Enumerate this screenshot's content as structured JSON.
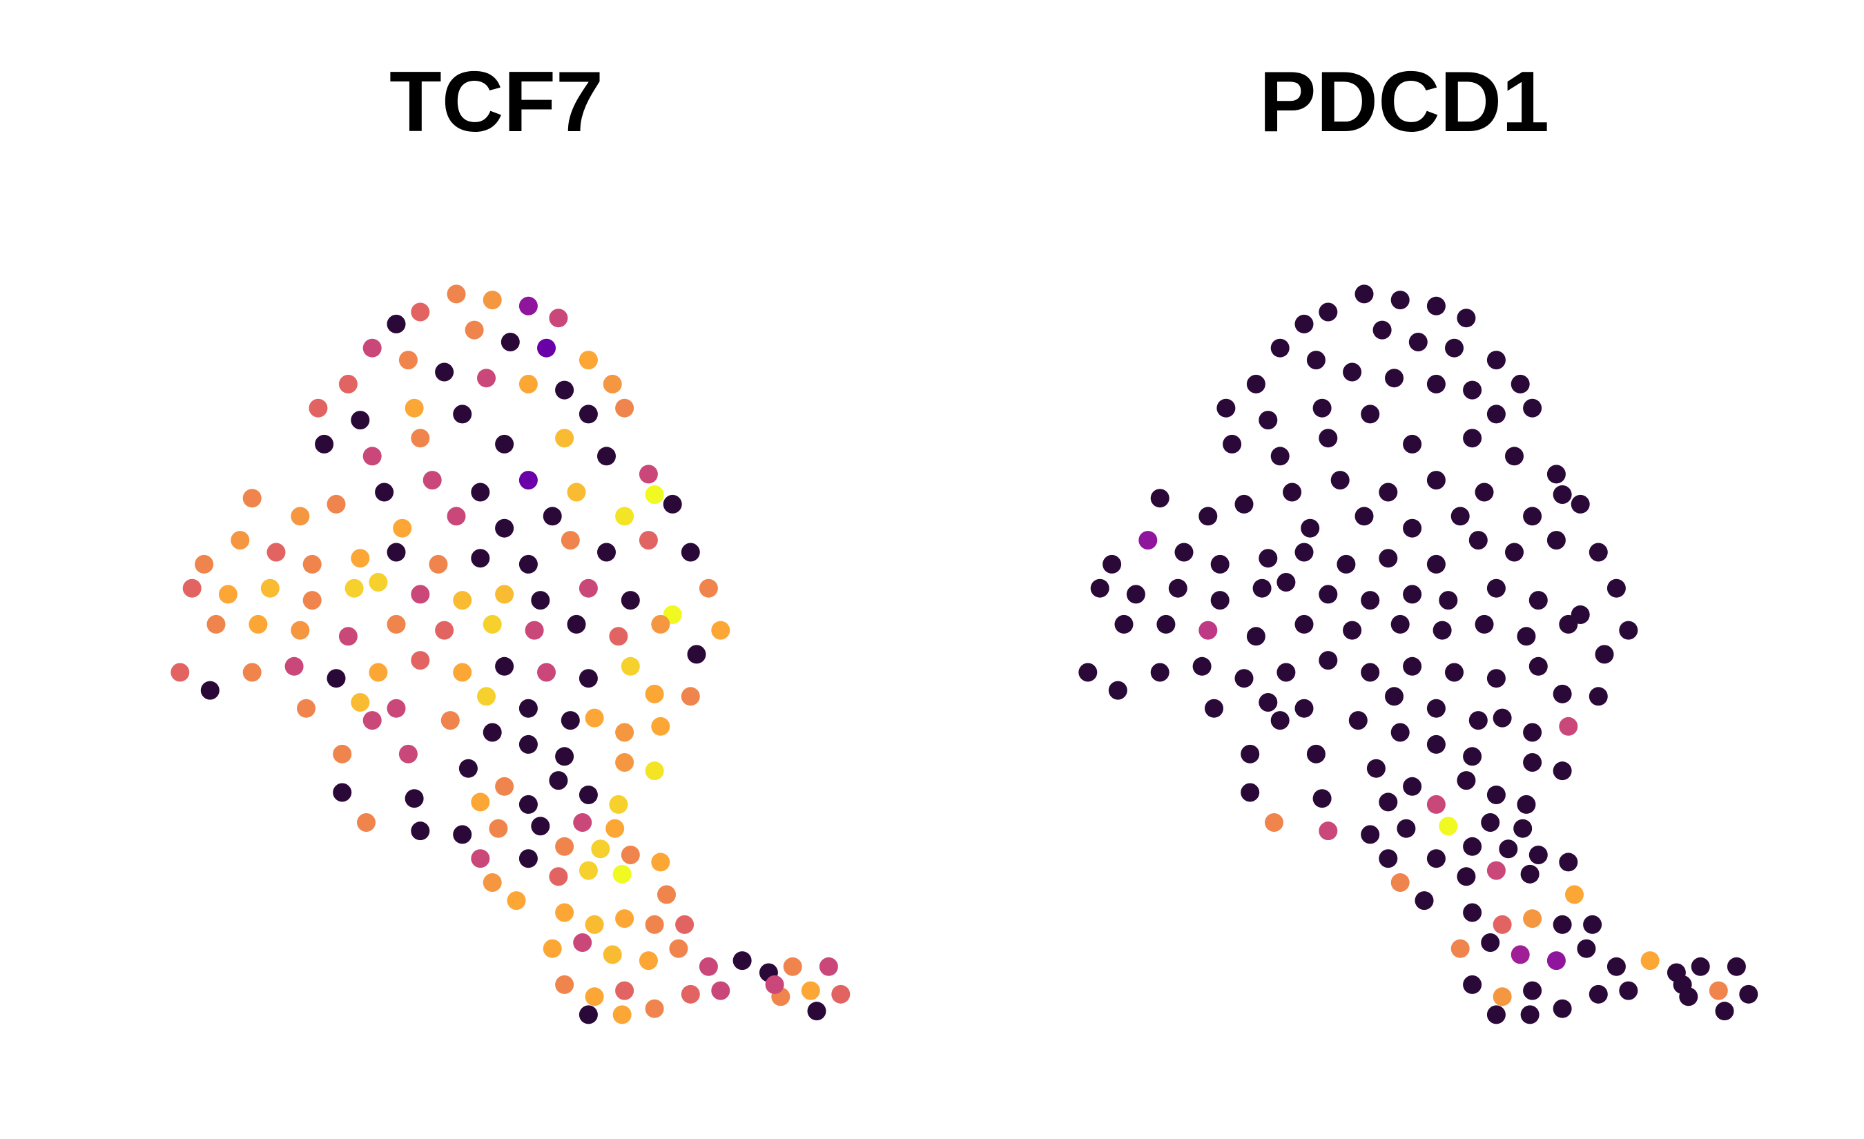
{
  "chart_data": [
    {
      "type": "scatter",
      "title": "TCF7",
      "xlim": [
        0,
        600
      ],
      "ylim": [
        0,
        650
      ],
      "clim": [
        0,
        1
      ],
      "colormap": [
        "#2a0838",
        "#6a00a8",
        "#b12a90",
        "#e16462",
        "#fca636",
        "#f0f921"
      ],
      "x": [
        250,
        280,
        310,
        335,
        220,
        200,
        265,
        295,
        325,
        360,
        380,
        180,
        160,
        210,
        240,
        275,
        310,
        340,
        135,
        170,
        215,
        255,
        360,
        390,
        140,
        180,
        220,
        290,
        340,
        375,
        410,
        430,
        310,
        270,
        230,
        190,
        150,
        120,
        80,
        350,
        390,
        415,
        330,
        290,
        250,
        205,
        40,
        70,
        100,
        130,
        170,
        200,
        235,
        270,
        310,
        345,
        375,
        410,
        445,
        30,
        60,
        95,
        130,
        165,
        185,
        220,
        255,
        290,
        320,
        360,
        395,
        430,
        460,
        470,
        50,
        85,
        120,
        160,
        200,
        240,
        280,
        315,
        350,
        385,
        420,
        20,
        45,
        80,
        115,
        150,
        185,
        220,
        255,
        290,
        325,
        360,
        395,
        450,
        125,
        170,
        200,
        245,
        275,
        310,
        345,
        415,
        445,
        180,
        155,
        210,
        280,
        310,
        340,
        365,
        390,
        420,
        260,
        290,
        335,
        390,
        415,
        155,
        215,
        270,
        310,
        360,
        385,
        175,
        220,
        255,
        285,
        320,
        355,
        382,
        270,
        310,
        340,
        370,
        395,
        420,
        280,
        300,
        335,
        360,
        388,
        425,
        340,
        365,
        390,
        415,
        440,
        330,
        355,
        380,
        410,
        435,
        460,
        340,
        365,
        390,
        415,
        360,
        388,
        445,
        470,
        488,
        510,
        530,
        560,
        520,
        545,
        570,
        550,
        515
      ],
      "y": [
        615,
        610,
        605,
        595,
        600,
        590,
        585,
        575,
        570,
        560,
        540,
        570,
        540,
        560,
        550,
        545,
        540,
        535,
        520,
        510,
        520,
        515,
        515,
        520,
        490,
        480,
        495,
        490,
        495,
        480,
        465,
        440,
        460,
        450,
        460,
        450,
        440,
        430,
        445,
        450,
        430,
        448,
        430,
        420,
        430,
        420,
        390,
        410,
        400,
        390,
        395,
        400,
        390,
        395,
        390,
        410,
        400,
        410,
        400,
        370,
        365,
        370,
        360,
        370,
        375,
        365,
        360,
        365,
        360,
        370,
        360,
        348,
        370,
        335,
        340,
        340,
        335,
        330,
        340,
        335,
        340,
        335,
        340,
        330,
        340,
        300,
        285,
        300,
        305,
        295,
        300,
        310,
        300,
        305,
        300,
        295,
        305,
        315,
        270,
        275,
        270,
        260,
        280,
        270,
        260,
        282,
        280,
        260,
        232,
        232,
        250,
        240,
        230,
        262,
        250,
        255,
        220,
        205,
        210,
        225,
        218,
        200,
        195,
        192,
        190,
        198,
        190,
        175,
        168,
        165,
        170,
        172,
        175,
        170,
        145,
        145,
        155,
        153,
        148,
        142,
        125,
        110,
        130,
        135,
        132,
        115,
        100,
        90,
        95,
        90,
        90,
        70,
        75,
        65,
        60,
        70,
        55,
        40,
        30,
        35,
        20,
        15,
        15,
        32,
        35,
        60,
        50,
        55,
        55,
        30,
        35,
        32,
        18,
        40
      ],
      "values": [
        0.7,
        0.75,
        0.3,
        0.5,
        0.6,
        0,
        0.7,
        0,
        0.2,
        0.8,
        0.75,
        0.5,
        0.6,
        0.7,
        0,
        0.5,
        0.8,
        0,
        0.6,
        0,
        0.8,
        0,
        0,
        0.7,
        0,
        0.5,
        0.7,
        0,
        0.85,
        0,
        0.5,
        0,
        0.2,
        0,
        0.5,
        0,
        0.7,
        0.75,
        0.7,
        0.85,
        0.95,
        1,
        0,
        0,
        0.5,
        0.8,
        0.7,
        0.75,
        0.6,
        0.7,
        0.8,
        0,
        0.7,
        0,
        0,
        0.7,
        0,
        0.6,
        0,
        0.6,
        0.8,
        0.85,
        0.7,
        0.9,
        0.9,
        0.5,
        0.85,
        0.85,
        0,
        0.5,
        0,
        1,
        0.7,
        0.8,
        0.7,
        0.8,
        0.75,
        0.5,
        0.7,
        0.6,
        0.9,
        0.5,
        0,
        0.6,
        0.75,
        0.6,
        0,
        0.7,
        0.5,
        0,
        0.8,
        0.6,
        0.8,
        0,
        0.5,
        0,
        0.9,
        0,
        0.7,
        0.85,
        0.5,
        0.7,
        0.9,
        0,
        0,
        0.8,
        0.7,
        0.5,
        0.7,
        0.5,
        0,
        0,
        0,
        0.8,
        0.75,
        0.8,
        0,
        0.7,
        0,
        0.75,
        0.95,
        0,
        0,
        0.8,
        0,
        0,
        0.9,
        0.7,
        0,
        0,
        0.7,
        0,
        0.5,
        0.8,
        0.5,
        0,
        0.7,
        0.9,
        0.7,
        0.8,
        0.75,
        0.8,
        0.6,
        0.9,
        1,
        0.7,
        0.8,
        0.85,
        0.8,
        0.7,
        0.6,
        0.8,
        0.5,
        0.85,
        0.8,
        0.7,
        0.5,
        0.7,
        0.8,
        0.6,
        0.7,
        0,
        0.8,
        0.6,
        0.5,
        0,
        0,
        0.7,
        0.5,
        0.7,
        0.8,
        0.6,
        0,
        0.5
      ]
    },
    {
      "type": "scatter",
      "title": "PDCD1",
      "xlim": [
        0,
        600
      ],
      "ylim": [
        0,
        650
      ],
      "clim": [
        0,
        1
      ],
      "colormap": [
        "#2a0838",
        "#6a00a8",
        "#b12a90",
        "#e16462",
        "#fca636",
        "#f0f921"
      ],
      "x": [
        250,
        280,
        310,
        335,
        220,
        200,
        265,
        295,
        325,
        360,
        380,
        180,
        160,
        210,
        240,
        275,
        310,
        340,
        135,
        170,
        215,
        255,
        360,
        390,
        140,
        180,
        220,
        290,
        340,
        375,
        410,
        430,
        310,
        270,
        230,
        190,
        150,
        120,
        80,
        350,
        390,
        415,
        330,
        290,
        250,
        205,
        40,
        70,
        100,
        130,
        170,
        200,
        235,
        270,
        310,
        345,
        375,
        410,
        445,
        30,
        60,
        95,
        130,
        165,
        185,
        220,
        255,
        290,
        320,
        360,
        395,
        430,
        460,
        470,
        50,
        85,
        120,
        160,
        200,
        240,
        280,
        315,
        350,
        385,
        420,
        20,
        45,
        80,
        115,
        150,
        185,
        220,
        255,
        290,
        325,
        360,
        395,
        450,
        125,
        170,
        200,
        245,
        275,
        310,
        345,
        415,
        445,
        180,
        155,
        210,
        280,
        310,
        340,
        365,
        390,
        420,
        260,
        290,
        335,
        390,
        415,
        155,
        215,
        270,
        310,
        360,
        385,
        175,
        220,
        255,
        285,
        320,
        355,
        382,
        270,
        310,
        340,
        370,
        395,
        420,
        280,
        300,
        335,
        360,
        388,
        425,
        340,
        365,
        390,
        415,
        440,
        330,
        355,
        380,
        410,
        435,
        460,
        340,
        365,
        390,
        415,
        360,
        388,
        445,
        470,
        488,
        510,
        530,
        560,
        520,
        545,
        570,
        550,
        515
      ],
      "y": [
        615,
        610,
        605,
        595,
        600,
        590,
        585,
        575,
        570,
        560,
        540,
        570,
        540,
        560,
        550,
        545,
        540,
        535,
        520,
        510,
        520,
        515,
        515,
        520,
        490,
        480,
        495,
        490,
        495,
        480,
        465,
        440,
        460,
        450,
        460,
        450,
        440,
        430,
        445,
        450,
        430,
        448,
        430,
        420,
        430,
        420,
        390,
        410,
        400,
        390,
        395,
        400,
        390,
        395,
        390,
        410,
        400,
        410,
        400,
        370,
        365,
        370,
        360,
        370,
        375,
        365,
        360,
        365,
        360,
        370,
        360,
        348,
        370,
        335,
        340,
        340,
        335,
        330,
        340,
        335,
        340,
        335,
        340,
        330,
        340,
        300,
        285,
        300,
        305,
        295,
        300,
        310,
        300,
        305,
        300,
        295,
        305,
        315,
        270,
        275,
        270,
        260,
        280,
        270,
        260,
        282,
        280,
        260,
        232,
        232,
        250,
        240,
        230,
        262,
        250,
        255,
        220,
        205,
        210,
        225,
        218,
        200,
        195,
        192,
        190,
        198,
        190,
        175,
        168,
        165,
        170,
        172,
        175,
        170,
        145,
        145,
        155,
        153,
        148,
        142,
        125,
        110,
        130,
        135,
        132,
        115,
        100,
        90,
        95,
        90,
        90,
        70,
        75,
        65,
        60,
        70,
        55,
        40,
        30,
        35,
        20,
        15,
        15,
        32,
        35,
        60,
        50,
        55,
        55,
        30,
        35,
        32,
        18,
        40
      ],
      "values": [
        0,
        0,
        0,
        0,
        0,
        0,
        0,
        0,
        0,
        0,
        0,
        0,
        0,
        0,
        0,
        0,
        0,
        0,
        0,
        0,
        0,
        0,
        0,
        0,
        0,
        0,
        0,
        0,
        0,
        0,
        0,
        0,
        0,
        0,
        0,
        0,
        0,
        0,
        0,
        0,
        0,
        0,
        0,
        0,
        0,
        0,
        0,
        0.3,
        0,
        0,
        0,
        0,
        0,
        0,
        0,
        0,
        0,
        0,
        0,
        0,
        0,
        0,
        0,
        0,
        0,
        0,
        0,
        0,
        0,
        0,
        0,
        0,
        0,
        0,
        0,
        0,
        0.45,
        0,
        0,
        0,
        0,
        0,
        0,
        0,
        0,
        0,
        0,
        0,
        0,
        0,
        0,
        0,
        0,
        0,
        0,
        0,
        0,
        0,
        0,
        0,
        0,
        0,
        0,
        0,
        0,
        0,
        0,
        0,
        0,
        0,
        0,
        0,
        0,
        0,
        0,
        0.5,
        0,
        0,
        0,
        0,
        0,
        0,
        0,
        0,
        0.5,
        0,
        0,
        0.7,
        0.5,
        0,
        0,
        1,
        0,
        0,
        0,
        0,
        0,
        0,
        0,
        0,
        0.7,
        0,
        0,
        0.5,
        0,
        0.8,
        0,
        0.6,
        0.75,
        0,
        0,
        0.7,
        0,
        0.35,
        0.3,
        0,
        0,
        0,
        0.75,
        0,
        0,
        0,
        0,
        0,
        0,
        0.8,
        0,
        0,
        0,
        0,
        0.7,
        0,
        0,
        0
      ]
    }
  ]
}
